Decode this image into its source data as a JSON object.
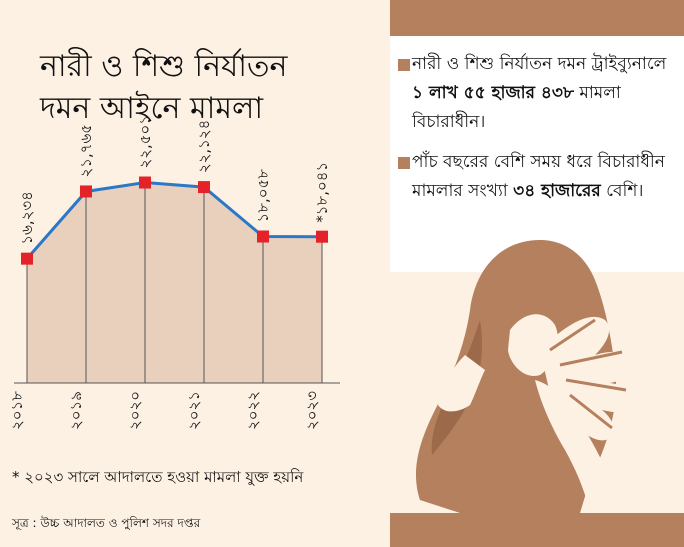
{
  "title": {
    "line1": "নারী ও শিশু নির্যাতন",
    "line2": "দমন আইনে মামলা"
  },
  "chart_data": {
    "type": "line",
    "title": "নারী ও শিশু নির্যাতন দমন আইনে মামলা",
    "categories": [
      "২০১৮",
      "২০১৯",
      "২০২০",
      "২০২১",
      "২০২২",
      "২০২৩"
    ],
    "values": [
      16234,
      21765,
      22501,
      22124,
      18058,
      18041
    ],
    "labels": [
      "১৬,২৩৪",
      "২১,৭৬৫",
      "২২,৫০১",
      "২২,১২৪",
      "১৮,০৫৮",
      "*১৮,০৪১"
    ],
    "ylim": [
      6000,
      26000
    ],
    "colors": {
      "line": "#2b77c8",
      "marker": "#e3222a",
      "area": "#e9d0bd"
    }
  },
  "footnote": "* ২০২৩ সালে আদালতে হওয়া মামলা যুক্ত হয়নি",
  "source": "সূত্র : উচ্চ আদালত ও পুলিশ সদর দপ্তর",
  "info": {
    "point1": {
      "pre": "নারী ও শিশু নির্যাতন দমন ট্রাইব্যুনালে ",
      "bold": "১ লাখ ৫৫ হাজার ৪৩৮",
      "post": " মামলা বিচারাধীন।"
    },
    "point2": {
      "pre": "পাঁচ বছরের বেশি সময় ধরে বিচারাধীন মামলার সংখ্যা ",
      "bold": "৩৪ হাজারের",
      "post": " বেশি।"
    }
  }
}
